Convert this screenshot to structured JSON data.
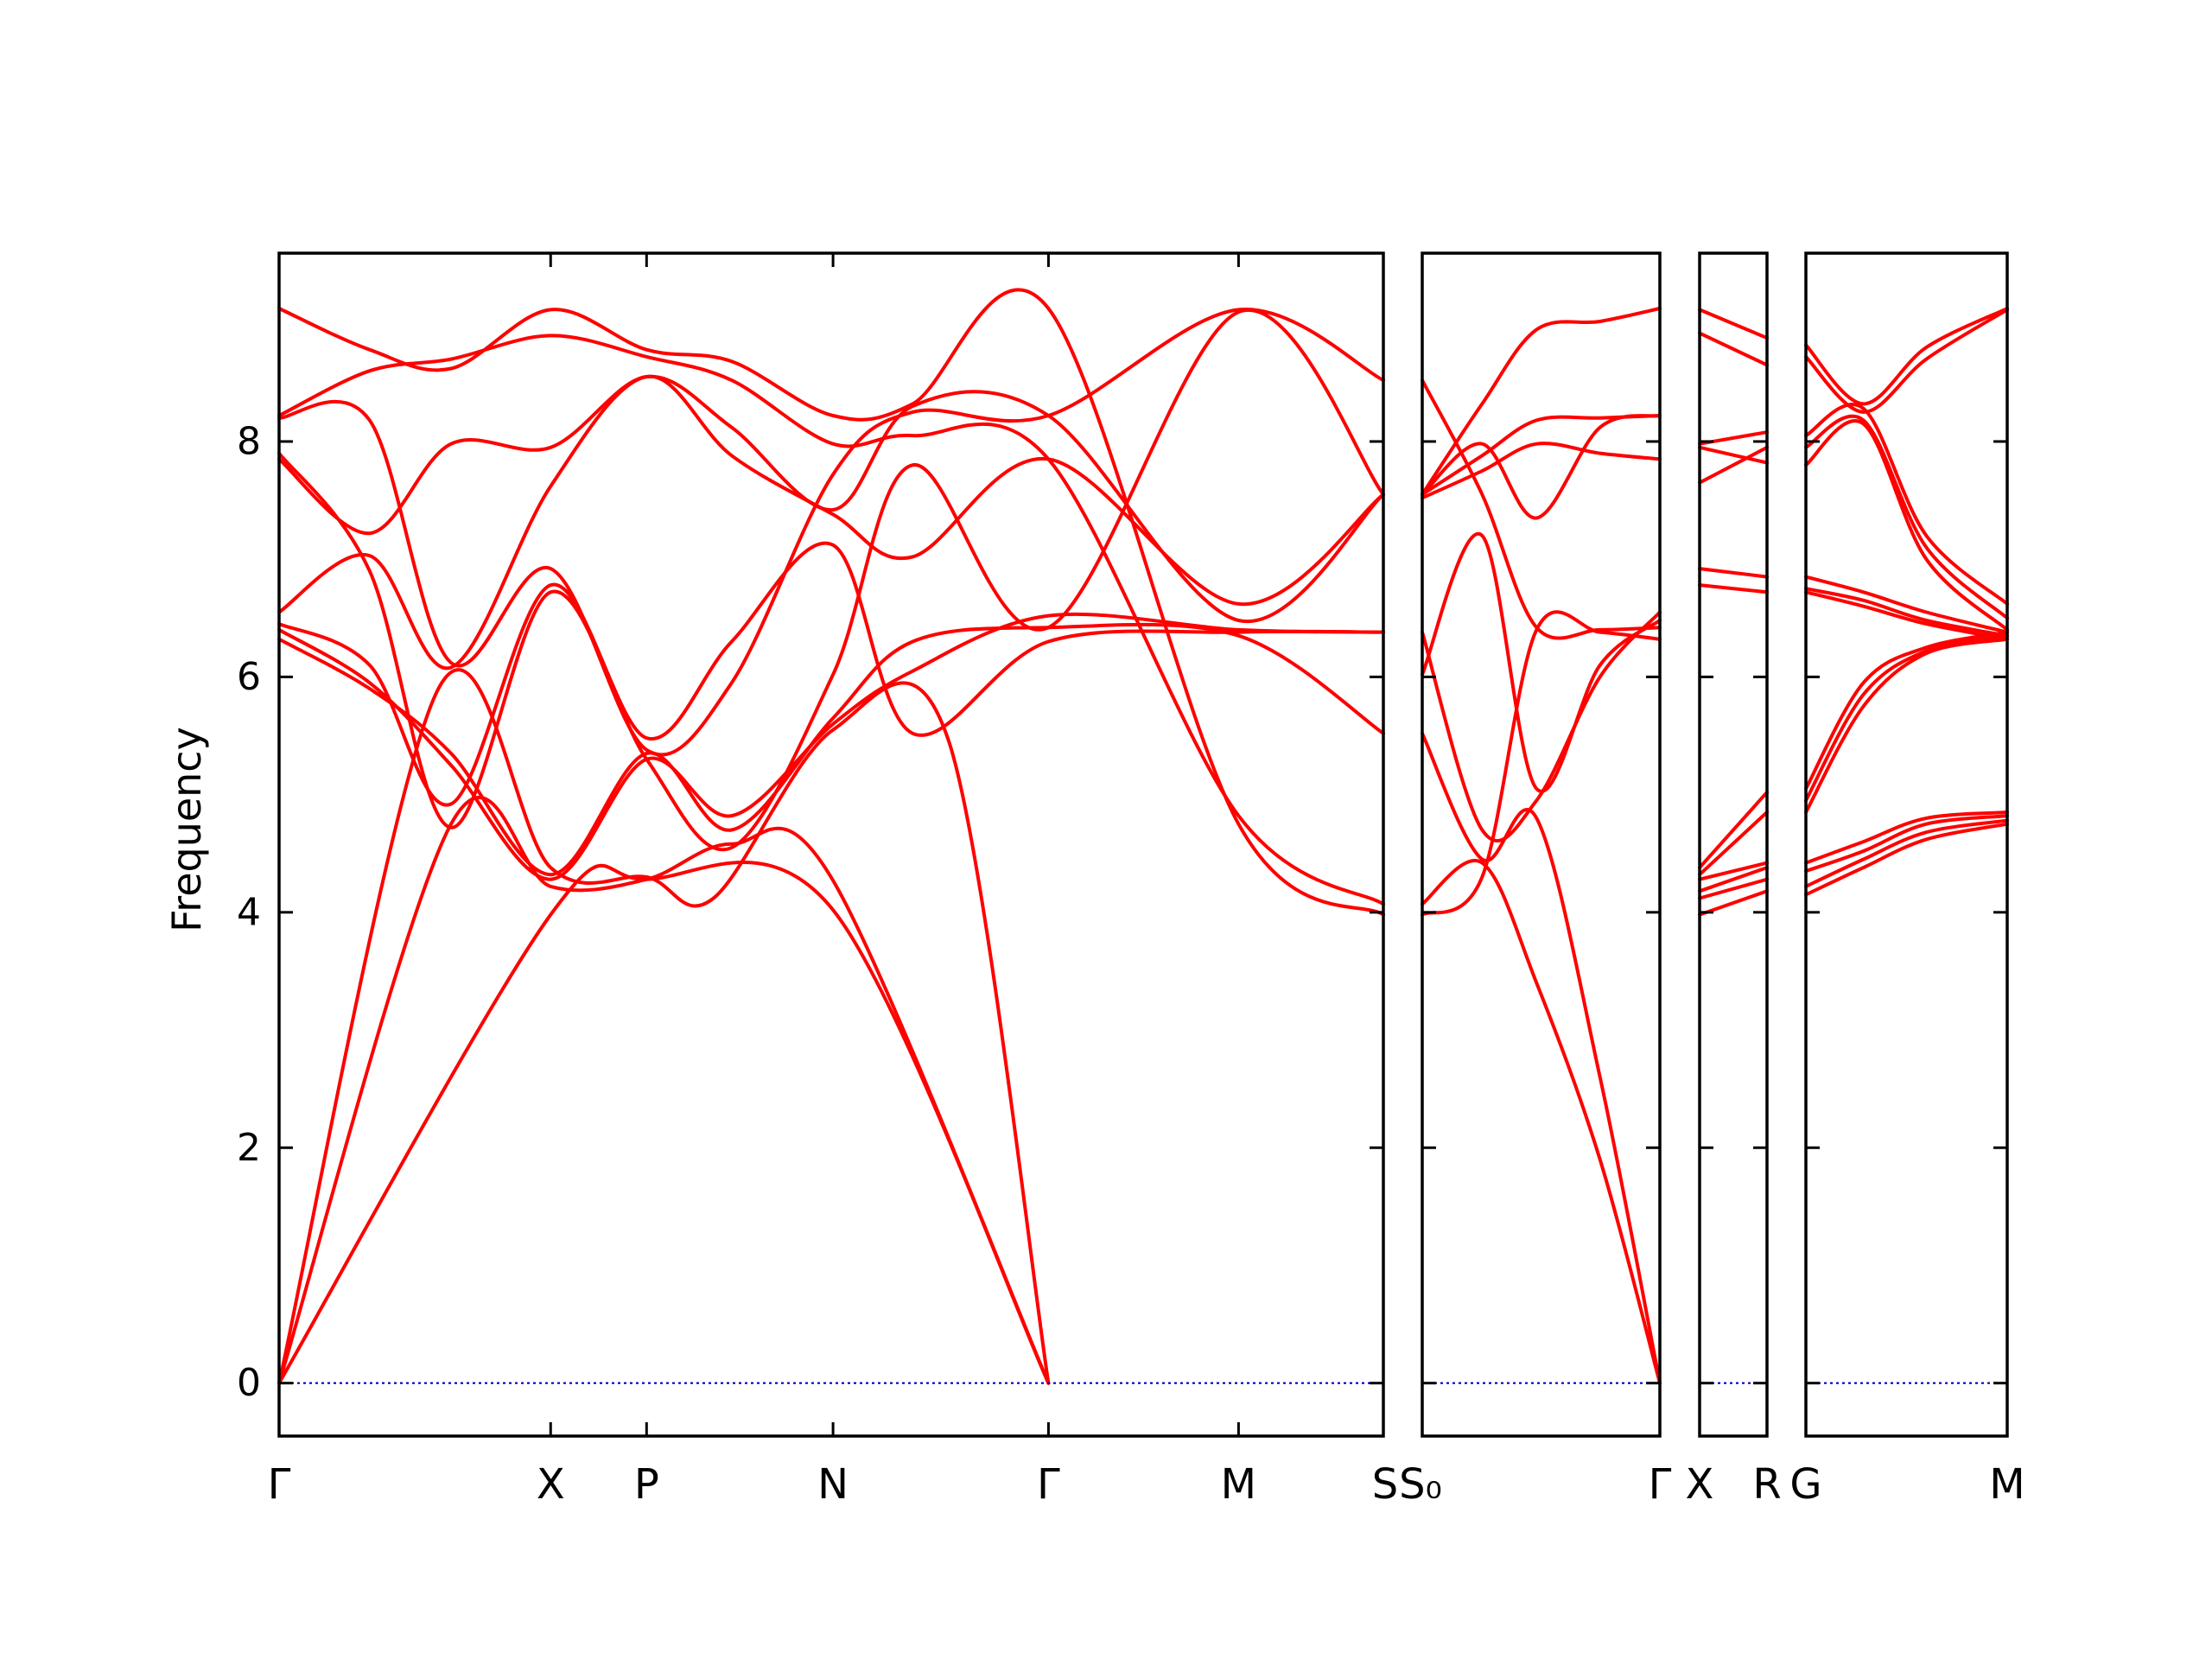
{
  "chart_data": {
    "type": "line",
    "ylabel": "Frequency",
    "ylim": [
      -0.45,
      9.6
    ],
    "yticks": [
      0,
      2,
      4,
      6,
      8
    ],
    "grid": false,
    "line_color": "#ff0000",
    "zero_line_color": "#0000cc",
    "x_range": [
      0,
      9.9
    ],
    "panels": [
      {
        "x": [
          0,
          6.1
        ],
        "kpoints": [
          {
            "label": "Γ",
            "x": 0
          },
          {
            "label": "X",
            "x": 1.5
          },
          {
            "label": "P",
            "x": 2.03
          },
          {
            "label": "N",
            "x": 3.06
          },
          {
            "label": "Γ",
            "x": 4.25
          },
          {
            "label": "M",
            "x": 5.3
          },
          {
            "label": "S",
            "x": 6.1
          }
        ]
      },
      {
        "x": [
          6.32,
          7.63
        ],
        "kpoints": [
          {
            "label": "S₀",
            "x": 6.32
          },
          {
            "label": "Γ",
            "x": 7.63
          }
        ]
      },
      {
        "x": [
          7.86,
          8.23
        ],
        "kpoints": [
          {
            "label": "X",
            "x": 7.86
          },
          {
            "label": "R",
            "x": 8.23
          }
        ]
      },
      {
        "x": [
          8.43,
          9.55
        ],
        "kpoints": [
          {
            "label": "G",
            "x": 8.43
          },
          {
            "label": "M",
            "x": 9.55
          }
        ]
      }
    ],
    "series": [
      {
        "panel": 0,
        "x": [
          0,
          1.5,
          2.03,
          3.06,
          4.25
        ],
        "y": [
          0,
          3.98,
          4.28,
          4.02,
          0
        ]
      },
      {
        "panel": 0,
        "x": [
          0,
          0.95,
          1.5,
          2.03,
          2.5,
          3.06,
          4.25
        ],
        "y": [
          0,
          4.75,
          4.22,
          4.28,
          4.58,
          4.27,
          0
        ]
      },
      {
        "panel": 0,
        "x": [
          0,
          0.88,
          1.5,
          2.03,
          2.4,
          3.06,
          3.7,
          4.25
        ],
        "y": [
          0,
          5.9,
          4.38,
          4.3,
          4.12,
          5.55,
          5.45,
          0
        ]
      },
      {
        "panel": 0,
        "x": [
          0,
          0.5,
          0.95,
          1.5,
          2.03,
          2.5,
          3.06,
          3.5,
          4.25,
          5.3,
          6.1
        ],
        "y": [
          6.32,
          5.9,
          5.35,
          4.32,
          5.35,
          4.7,
          5.65,
          6.3,
          6.42,
          6.35,
          5.52
        ]
      },
      {
        "panel": 0,
        "x": [
          0,
          0.5,
          0.95,
          1.5,
          2.03,
          2.5,
          3.06,
          3.5,
          4.25,
          5.3,
          6.1
        ],
        "y": [
          6.4,
          5.95,
          5.25,
          4.28,
          5.3,
          4.82,
          5.6,
          6.05,
          6.52,
          6.4,
          6.38
        ]
      },
      {
        "panel": 0,
        "x": [
          0,
          0.5,
          0.95,
          1.5,
          2.03,
          2.5,
          3.06,
          3.5,
          4.25,
          5.3,
          6.1
        ],
        "y": [
          6.45,
          6.1,
          4.92,
          6.78,
          5.48,
          6.3,
          7.12,
          5.52,
          6.3,
          6.38,
          6.38
        ]
      },
      {
        "panel": 0,
        "x": [
          0,
          0.5,
          0.95,
          1.5,
          2.03,
          2.5,
          3.06,
          3.5,
          4.25,
          5.3,
          6.1
        ],
        "y": [
          6.55,
          7.03,
          6.08,
          7.62,
          8.55,
          7.88,
          7.38,
          7.02,
          7.85,
          6.62,
          7.55
        ]
      },
      {
        "panel": 0,
        "x": [
          0,
          0.5,
          0.95,
          1.5,
          2.03,
          2.5,
          3.06,
          3.5,
          4.25,
          5.3,
          6.1
        ],
        "y": [
          7.85,
          7.22,
          7.98,
          7.95,
          8.55,
          8.12,
          7.42,
          8.3,
          8.22,
          6.48,
          7.55
        ]
      },
      {
        "panel": 0,
        "x": [
          0,
          0.5,
          0.95,
          1.5,
          2.03,
          2.5,
          3.06,
          3.5,
          4.25,
          5.3,
          6.1
        ],
        "y": [
          8.22,
          8.6,
          8.7,
          8.9,
          8.72,
          8.52,
          7.98,
          8.05,
          7.85,
          4.82,
          4.07
        ]
      },
      {
        "panel": 0,
        "x": [
          0,
          0.5,
          0.95,
          1.5,
          2.03,
          2.5,
          3.06,
          3.5,
          4.25,
          5.3,
          6.1
        ],
        "y": [
          9.13,
          8.78,
          8.62,
          9.12,
          8.78,
          8.68,
          8.22,
          8.32,
          9.13,
          4.75,
          3.98
        ]
      },
      {
        "panel": 0,
        "x": [
          0,
          0.5,
          0.95,
          1.5,
          2.03,
          2.5,
          3.06,
          3.5,
          4.25,
          5.3,
          6.1
        ],
        "y": [
          8.2,
          8.18,
          6.12,
          6.92,
          5.38,
          5.95,
          7.72,
          8.25,
          8.22,
          9.12,
          8.52
        ]
      },
      {
        "panel": 0,
        "x": [
          0,
          0.5,
          0.95,
          1.5,
          2.03,
          2.5,
          3.06,
          3.5,
          4.25,
          5.3,
          6.1
        ],
        "y": [
          7.9,
          6.9,
          4.72,
          6.72,
          5.3,
          4.55,
          6.02,
          7.8,
          6.42,
          9.1,
          7.55
        ]
      },
      {
        "panel": 1,
        "x": [
          6.32,
          6.65,
          6.95,
          7.3,
          7.63
        ],
        "y": [
          8.52,
          7.55,
          6.42,
          6.4,
          6.42
        ]
      },
      {
        "panel": 1,
        "x": [
          6.32,
          6.65,
          6.95,
          7.3,
          7.63
        ],
        "y": [
          7.55,
          8.32,
          8.95,
          9.02,
          9.13
        ]
      },
      {
        "panel": 1,
        "x": [
          6.32,
          6.65,
          6.95,
          7.3,
          7.63
        ],
        "y": [
          7.55,
          7.98,
          7.35,
          8.12,
          8.22
        ]
      },
      {
        "panel": 1,
        "x": [
          6.32,
          6.65,
          6.95,
          7.3,
          7.63
        ],
        "y": [
          7.55,
          7.88,
          8.18,
          8.2,
          8.22
        ]
      },
      {
        "panel": 1,
        "x": [
          6.32,
          6.65,
          6.95,
          7.3,
          7.63
        ],
        "y": [
          7.52,
          7.75,
          7.98,
          7.9,
          7.85
        ]
      },
      {
        "panel": 1,
        "x": [
          6.32,
          6.65,
          6.95,
          7.3,
          7.63
        ],
        "y": [
          6.38,
          4.7,
          4.95,
          6.0,
          6.55
        ]
      },
      {
        "panel": 1,
        "x": [
          6.32,
          6.65,
          6.95,
          7.3,
          7.63
        ],
        "y": [
          6.02,
          7.2,
          5.05,
          6.1,
          6.48
        ]
      },
      {
        "panel": 1,
        "x": [
          6.32,
          6.65,
          6.95,
          7.3,
          7.63
        ],
        "y": [
          5.52,
          4.45,
          4.8,
          2.6,
          0
        ]
      },
      {
        "panel": 1,
        "x": [
          6.32,
          6.65,
          6.95,
          7.3,
          7.63
        ],
        "y": [
          4.07,
          4.42,
          3.4,
          1.9,
          0
        ]
      },
      {
        "panel": 1,
        "x": [
          6.32,
          6.65,
          6.95,
          7.3,
          7.63
        ],
        "y": [
          3.98,
          4.3,
          6.4,
          6.38,
          6.32
        ]
      },
      {
        "panel": 2,
        "x": [
          7.86,
          8.23
        ],
        "y": [
          9.12,
          8.88
        ]
      },
      {
        "panel": 2,
        "x": [
          7.86,
          8.23
        ],
        "y": [
          8.92,
          8.65
        ]
      },
      {
        "panel": 2,
        "x": [
          7.86,
          8.23
        ],
        "y": [
          7.98,
          8.08
        ]
      },
      {
        "panel": 2,
        "x": [
          7.86,
          8.23
        ],
        "y": [
          7.95,
          7.82
        ]
      },
      {
        "panel": 2,
        "x": [
          7.86,
          8.23
        ],
        "y": [
          7.65,
          7.95
        ]
      },
      {
        "panel": 2,
        "x": [
          7.86,
          8.23
        ],
        "y": [
          6.92,
          6.85
        ]
      },
      {
        "panel": 2,
        "x": [
          7.86,
          8.23
        ],
        "y": [
          6.78,
          6.72
        ]
      },
      {
        "panel": 2,
        "x": [
          7.86,
          8.23
        ],
        "y": [
          4.38,
          5.02
        ]
      },
      {
        "panel": 2,
        "x": [
          7.86,
          8.23
        ],
        "y": [
          4.32,
          4.85
        ]
      },
      {
        "panel": 2,
        "x": [
          7.86,
          8.23
        ],
        "y": [
          4.28,
          4.42
        ]
      },
      {
        "panel": 2,
        "x": [
          7.86,
          8.23
        ],
        "y": [
          4.18,
          4.38
        ]
      },
      {
        "panel": 2,
        "x": [
          7.86,
          8.23
        ],
        "y": [
          4.12,
          4.28
        ]
      },
      {
        "panel": 2,
        "x": [
          7.86,
          8.23
        ],
        "y": [
          3.98,
          4.18
        ]
      },
      {
        "panel": 3,
        "x": [
          8.43,
          8.75,
          9.1,
          9.55
        ],
        "y": [
          8.82,
          8.32,
          8.8,
          9.13
        ]
      },
      {
        "panel": 3,
        "x": [
          8.43,
          8.75,
          9.1,
          9.55
        ],
        "y": [
          8.72,
          8.25,
          8.7,
          9.12
        ]
      },
      {
        "panel": 3,
        "x": [
          8.43,
          8.75,
          9.1,
          9.55
        ],
        "y": [
          8.05,
          8.28,
          7.2,
          6.62
        ]
      },
      {
        "panel": 3,
        "x": [
          8.43,
          8.75,
          9.1,
          9.55
        ],
        "y": [
          7.95,
          8.18,
          7.1,
          6.5
        ]
      },
      {
        "panel": 3,
        "x": [
          8.43,
          8.75,
          9.1,
          9.55
        ],
        "y": [
          7.8,
          8.15,
          7.0,
          6.4
        ]
      },
      {
        "panel": 3,
        "x": [
          8.43,
          8.75,
          9.1,
          9.55
        ],
        "y": [
          6.85,
          6.72,
          6.55,
          6.38
        ]
      },
      {
        "panel": 3,
        "x": [
          8.43,
          8.75,
          9.1,
          9.55
        ],
        "y": [
          6.75,
          6.65,
          6.48,
          6.35
        ]
      },
      {
        "panel": 3,
        "x": [
          8.43,
          8.75,
          9.1,
          9.55
        ],
        "y": [
          6.72,
          6.6,
          6.45,
          6.32
        ]
      },
      {
        "panel": 3,
        "x": [
          8.43,
          8.75,
          9.1,
          9.55
        ],
        "y": [
          5.05,
          5.95,
          6.25,
          6.38
        ]
      },
      {
        "panel": 3,
        "x": [
          8.43,
          8.75,
          9.1,
          9.55
        ],
        "y": [
          4.95,
          5.85,
          6.22,
          6.35
        ]
      },
      {
        "panel": 3,
        "x": [
          8.43,
          8.75,
          9.1,
          9.55
        ],
        "y": [
          4.85,
          5.75,
          6.2,
          6.32
        ]
      },
      {
        "panel": 3,
        "x": [
          8.43,
          8.75,
          9.1,
          9.55
        ],
        "y": [
          4.42,
          4.6,
          4.8,
          4.85
        ]
      },
      {
        "panel": 3,
        "x": [
          8.43,
          8.75,
          9.1,
          9.55
        ],
        "y": [
          4.35,
          4.52,
          4.75,
          4.82
        ]
      },
      {
        "panel": 3,
        "x": [
          8.43,
          8.75,
          9.1,
          9.55
        ],
        "y": [
          4.22,
          4.45,
          4.68,
          4.78
        ]
      },
      {
        "panel": 3,
        "x": [
          8.43,
          8.75,
          9.1,
          9.55
        ],
        "y": [
          4.15,
          4.38,
          4.62,
          4.75
        ]
      }
    ]
  }
}
